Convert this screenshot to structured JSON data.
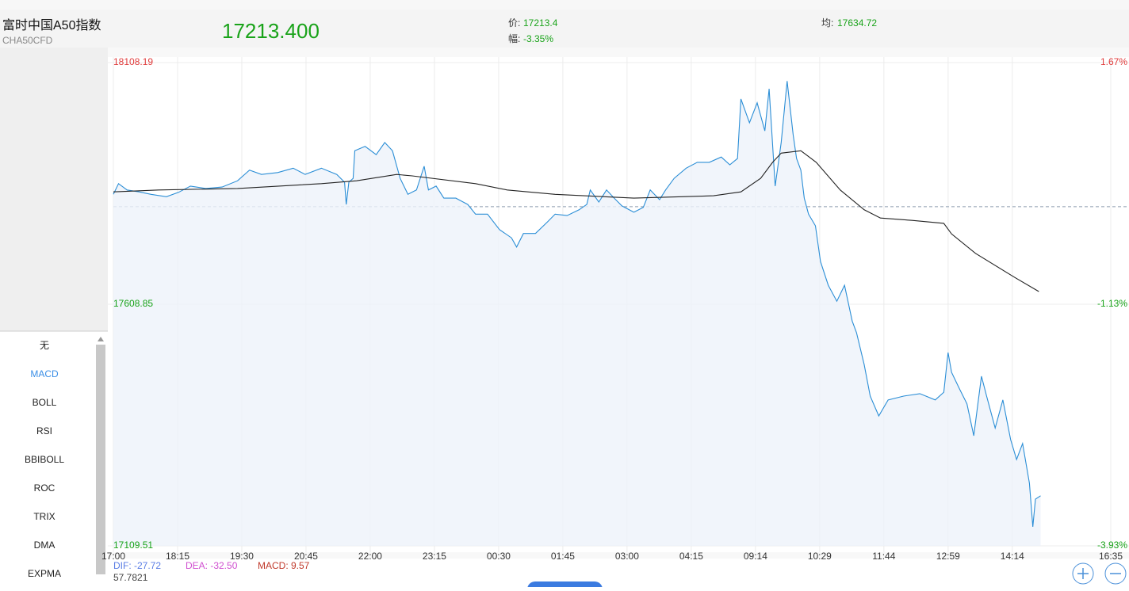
{
  "header": {
    "name": "富时中国A50指数",
    "code": "CHA50CFD",
    "price": "17213.400",
    "price_label": "价:",
    "price_value": "17213.4",
    "change_label": "幅:",
    "change_value": "-3.35%",
    "avg_label": "均:",
    "avg_value": "17634.72"
  },
  "sidebar": {
    "items": [
      "无",
      "MACD",
      "BOLL",
      "RSI",
      "BBIBOLL",
      "ROC",
      "TRIX",
      "DMA",
      "EXPMA"
    ]
  },
  "indicator": {
    "dif": "DIF: -27.72",
    "dea": "DEA: -32.50",
    "macd": "MACD: 9.57",
    "scale": "57.7821"
  },
  "chart_data": {
    "type": "line",
    "xlim": [
      0,
      1165
    ],
    "xticks": [
      {
        "value": 0,
        "label": "17:00"
      },
      {
        "value": 75,
        "label": "18:15"
      },
      {
        "value": 150,
        "label": "19:30"
      },
      {
        "value": 225,
        "label": "20:45"
      },
      {
        "value": 300,
        "label": "22:00"
      },
      {
        "value": 375,
        "label": "23:15"
      },
      {
        "value": 450,
        "label": "00:30"
      },
      {
        "value": 525,
        "label": "01:45"
      },
      {
        "value": 600,
        "label": "03:00"
      },
      {
        "value": 675,
        "label": "04:15"
      },
      {
        "value": 750,
        "label": "09:14"
      },
      {
        "value": 825,
        "label": "10:29"
      },
      {
        "value": 900,
        "label": "11:44"
      },
      {
        "value": 975,
        "label": "12:59"
      },
      {
        "value": 1050,
        "label": "14:14"
      },
      {
        "value": 1165,
        "label": "16:35"
      }
    ],
    "ylim": [
      17109.51,
      18108.19
    ],
    "yticks": [
      18108.19,
      17608.85,
      17109.51
    ],
    "y2lim": [
      -3.93,
      1.67
    ],
    "y2ticks": [
      {
        "value": 1.67,
        "label": "1.67%"
      },
      {
        "value": -1.13,
        "label": "-1.13%"
      },
      {
        "value": -3.93,
        "label": "-3.93%"
      }
    ],
    "grid": true,
    "series": [
      {
        "color": "#2b8ed6",
        "x": [
          0,
          6,
          16,
          30,
          44,
          62,
          76,
          90,
          108,
          127,
          145,
          159,
          173,
          192,
          210,
          224,
          243,
          261,
          270,
          272,
          275,
          280,
          282,
          294,
          307,
          317,
          326,
          335,
          344,
          354,
          363,
          368,
          377,
          386,
          400,
          414,
          423,
          437,
          451,
          465,
          471,
          479,
          493,
          507,
          516,
          530,
          544,
          553,
          557,
          567,
          576,
          585,
          594,
          608,
          619,
          627,
          638,
          645,
          655,
          669,
          682,
          696,
          710,
          720,
          729,
          733,
          743,
          752,
          761,
          766,
          773,
          780,
          787,
          794,
          798,
          803,
          807,
          812,
          820,
          826,
          835,
          845,
          854,
          863,
          868,
          877,
          884,
          894,
          905,
          923,
          942,
          960,
          970,
          975,
          979,
          988,
          997,
          1005,
          1014,
          1020,
          1030,
          1039,
          1048,
          1055,
          1062,
          1070,
          1074,
          1077,
          1083
        ],
        "values": [
          17836,
          17858,
          17845,
          17841,
          17836,
          17831,
          17840,
          17853,
          17848,
          17851,
          17864,
          17886,
          17877,
          17881,
          17890,
          17877,
          17890,
          17877,
          17861,
          17815,
          17861,
          17869,
          17926,
          17935,
          17918,
          17943,
          17926,
          17869,
          17836,
          17845,
          17894,
          17845,
          17853,
          17828,
          17828,
          17815,
          17795,
          17795,
          17763,
          17746,
          17727,
          17755,
          17755,
          17779,
          17795,
          17792,
          17804,
          17815,
          17845,
          17820,
          17845,
          17828,
          17812,
          17799,
          17809,
          17845,
          17825,
          17845,
          17869,
          17890,
          17902,
          17902,
          17913,
          17897,
          17910,
          18033,
          17984,
          18025,
          17967,
          18054,
          17853,
          17943,
          18070,
          17959,
          17910,
          17886,
          17828,
          17795,
          17771,
          17697,
          17648,
          17615,
          17648,
          17574,
          17550,
          17484,
          17419,
          17378,
          17411,
          17419,
          17424,
          17411,
          17427,
          17509,
          17468,
          17435,
          17403,
          17337,
          17460,
          17419,
          17353,
          17411,
          17329,
          17288,
          17321,
          17239,
          17149,
          17206,
          17213
        ]
      },
      {
        "color": "#222222",
        "x": [
          0,
          53,
          145,
          243,
          284,
          331,
          349,
          423,
          460,
          516,
          608,
          701,
          733,
          756,
          770,
          780,
          803,
          821,
          849,
          877,
          896,
          933,
          970,
          979,
          1007,
          1053,
          1081
        ],
        "values": [
          17841,
          17845,
          17848,
          17858,
          17864,
          17877,
          17874,
          17858,
          17845,
          17836,
          17828,
          17833,
          17841,
          17869,
          17902,
          17921,
          17926,
          17902,
          17845,
          17804,
          17787,
          17782,
          17776,
          17754,
          17714,
          17664,
          17635
        ]
      }
    ]
  }
}
